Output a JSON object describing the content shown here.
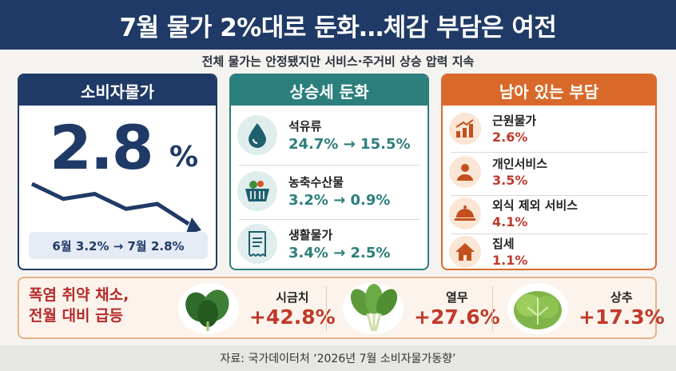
{
  "header": {
    "title": "7월 물가 2%대로 둔화…체감 부담은 여전",
    "subtitle": "전체 물가는 안정됐지만 서비스·주거비 상승 압력 지속"
  },
  "cpi_panel": {
    "title": "소비자물가",
    "value": "2.8",
    "unit": "%",
    "note": "6월 3.2% → 7월 2.8%",
    "trend": [
      3.6,
      3.3,
      3.4,
      3.1,
      3.2,
      2.8
    ]
  },
  "slowdown_panel": {
    "title": "상승세 둔화",
    "items": [
      {
        "label": "석유류",
        "value": "24.7% → 15.5%",
        "icon": "oil-drop-icon"
      },
      {
        "label": "농축수산물",
        "value": "3.2% → 0.9%",
        "icon": "grocery-basket-icon"
      },
      {
        "label": "생활물가",
        "value": "3.4% → 2.5%",
        "icon": "receipt-icon"
      }
    ]
  },
  "burden_panel": {
    "title": "남아 있는 부담",
    "items": [
      {
        "label": "근원물가",
        "value": "2.6%",
        "icon": "rising-chart-icon"
      },
      {
        "label": "개인서비스",
        "value": "3.5%",
        "icon": "person-icon"
      },
      {
        "label": "외식 제외 서비스",
        "value": "4.1%",
        "icon": "food-cloche-icon"
      },
      {
        "label": "집세",
        "value": "1.1%",
        "icon": "house-icon"
      }
    ]
  },
  "vegetables": {
    "headline_line1": "폭염 취약 채소,",
    "headline_line2": "전월 대비 급등",
    "items": [
      {
        "name": "시금치",
        "change": "+42.8%",
        "icon": "spinach-icon"
      },
      {
        "name": "열무",
        "change": "+27.6%",
        "icon": "young-radish-icon"
      },
      {
        "name": "상추",
        "change": "+17.3%",
        "icon": "lettuce-icon"
      }
    ]
  },
  "footer": {
    "source": "자료: 국가데이터처 ‘2026년 7월 소비자물가동향’"
  },
  "colors": {
    "navy": "#1f3a66",
    "teal": "#2b7f7c",
    "orange": "#d9692a",
    "red": "#c0392b"
  }
}
